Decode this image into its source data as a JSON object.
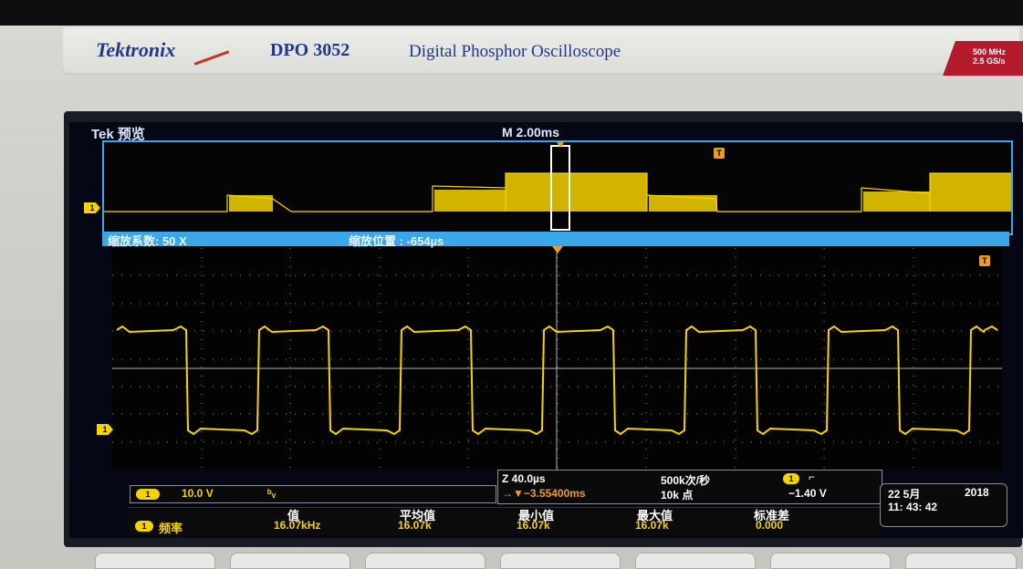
{
  "brand": {
    "logo": "Tektronix",
    "model": "DPO 3052",
    "subtitle": "Digital Phosphor Oscilloscope",
    "spec_line1": "500 MHz",
    "spec_line2": "2.5 GS/s"
  },
  "overview": {
    "label": "Tek 预览",
    "timebase": "M 2.00ms",
    "trigger_marker": "T",
    "channel_marker": "1"
  },
  "zoom": {
    "factor_label": "缩放系数: 50 X",
    "position_label": "缩放位置 :  -654µs"
  },
  "main_channel_marker": "1",
  "main_trigger_marker": "T",
  "chart_data": {
    "type": "line",
    "series": [
      {
        "values": [
          1,
          0,
          1,
          0,
          1,
          0,
          1,
          0,
          1,
          0,
          1,
          0,
          1
        ]
      }
    ],
    "note_colors": {
      "trace": "#f6d300",
      "grid": "#9a9a9a"
    }
  },
  "channel_scale": {
    "channel": "1",
    "volts": "10.0 V"
  },
  "zoom_info": {
    "zoom_time": "Z 40.0µs",
    "trigger_pos": "→▼−3.55400ms",
    "sample_rate": "500k次/秒",
    "record_len": "10k 点",
    "trig_channel": "1",
    "trig_level": "−1.40 V"
  },
  "measure": {
    "channel": "1",
    "name": "频率",
    "headers": [
      "值",
      "平均值",
      "最小值",
      "最大值",
      "标准差"
    ],
    "values": [
      "16.07kHz",
      "16.07k",
      "16.07k",
      "16.07k",
      "0.000"
    ]
  },
  "datetime": {
    "date": "22 5月",
    "year": "2018",
    "time": "11: 43: 42"
  },
  "colors": {
    "yellow": "#f6d300",
    "cyan": "#3aa7e8",
    "orange": "#f09a1f"
  }
}
